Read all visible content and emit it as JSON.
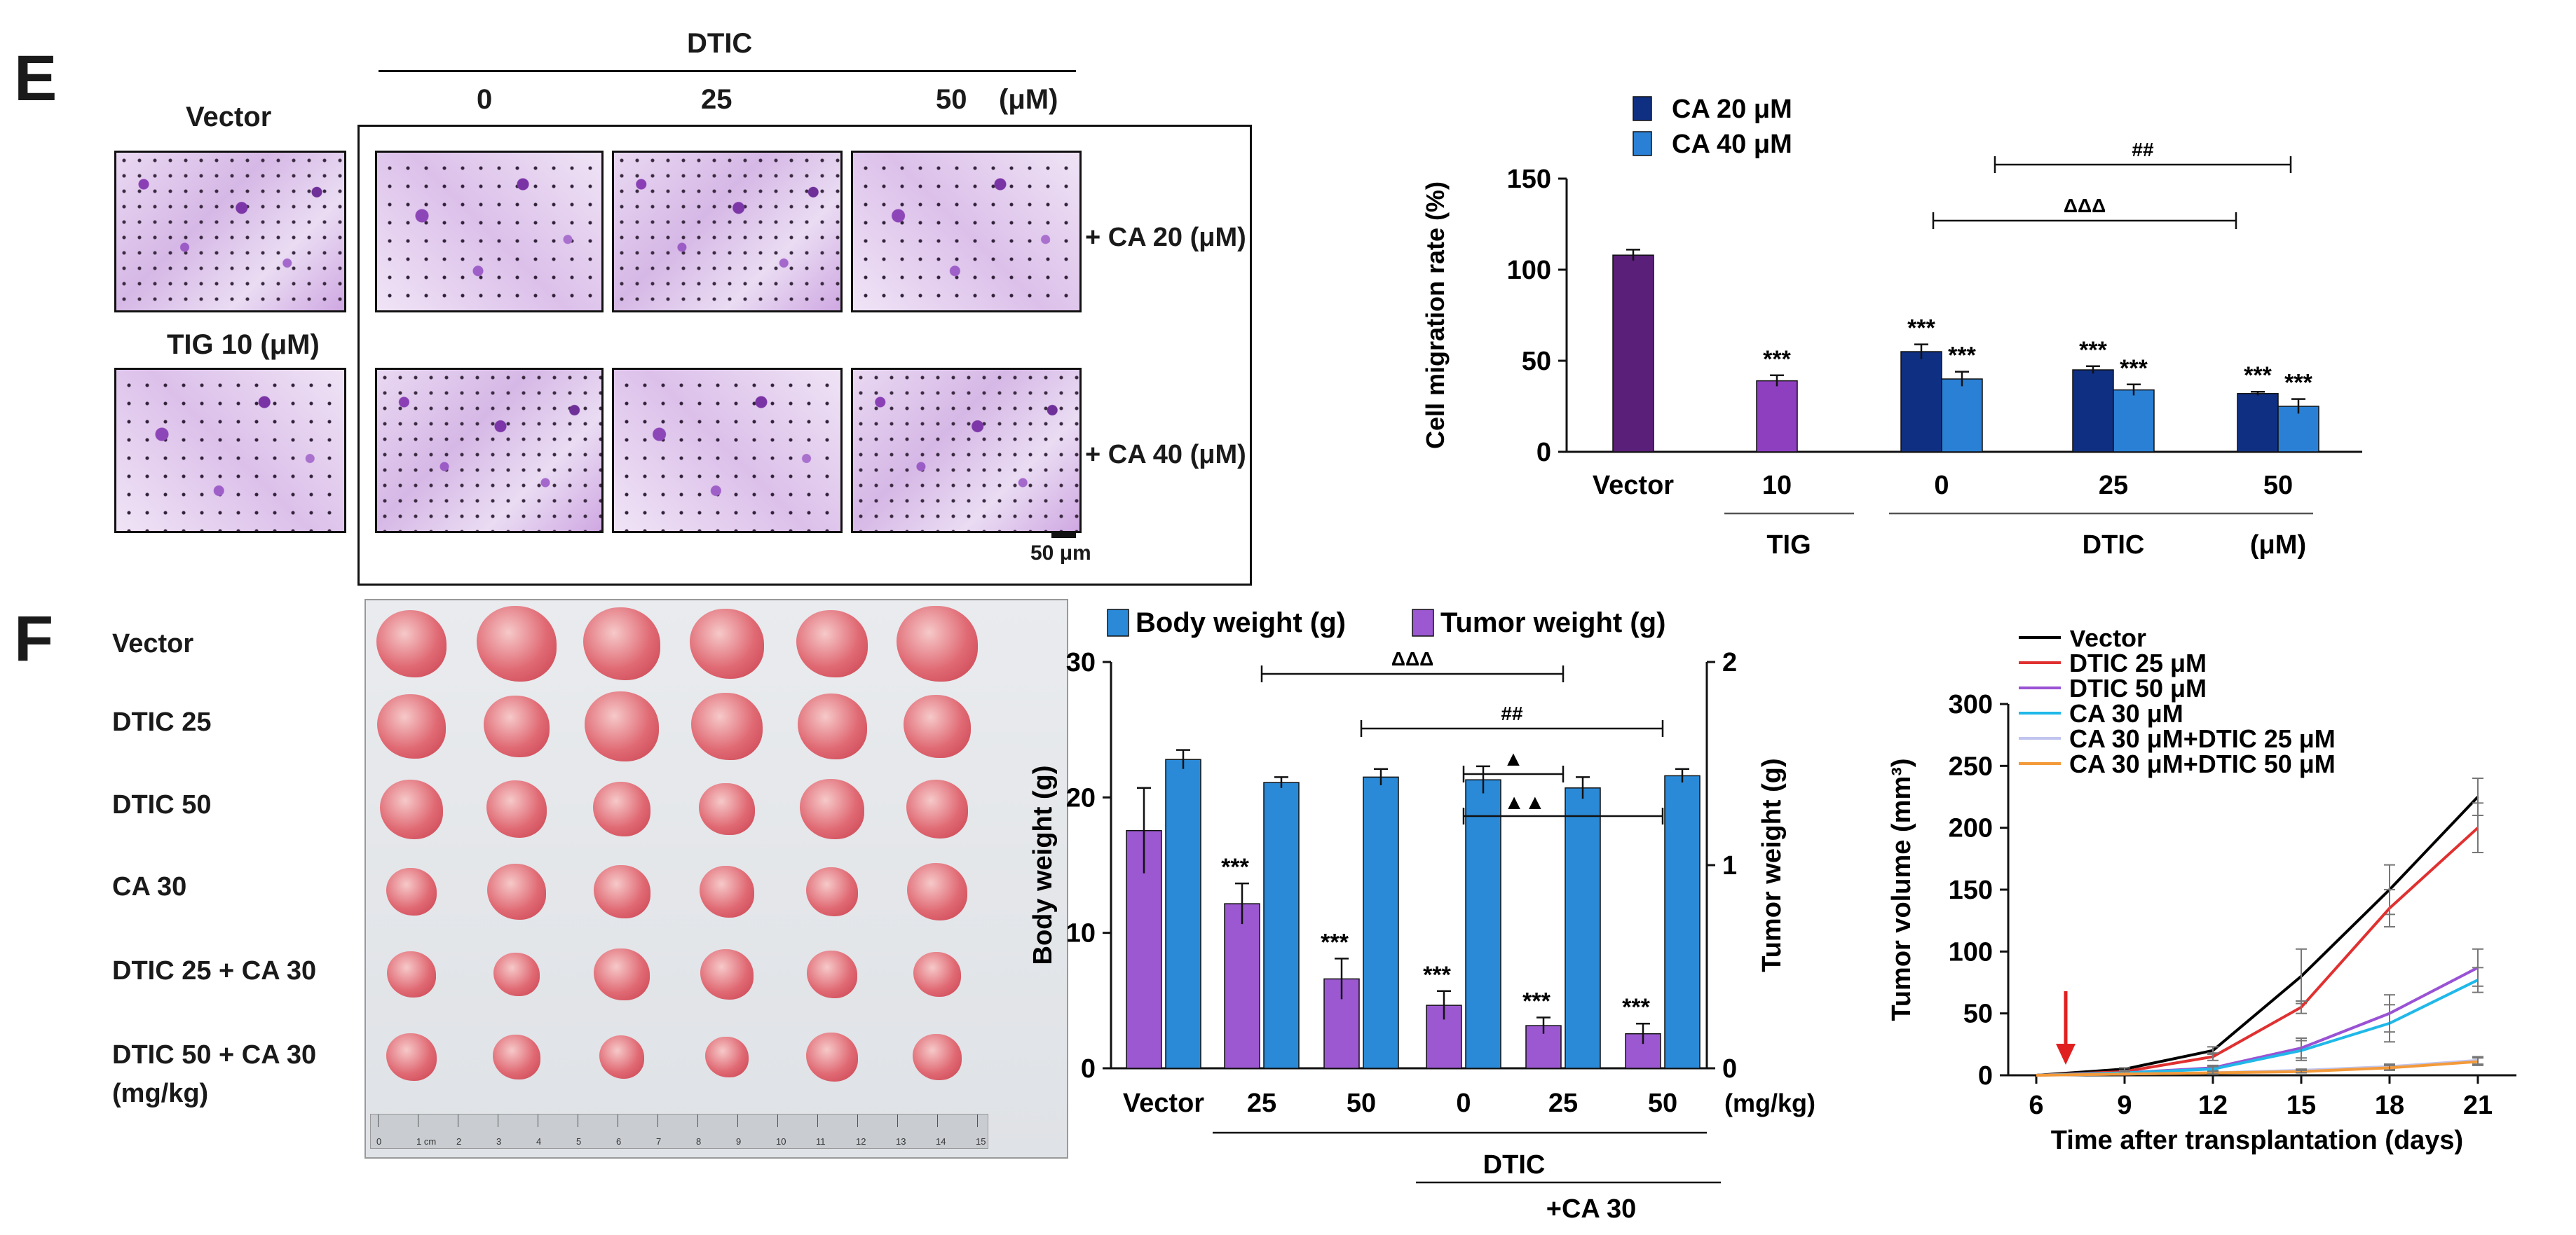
{
  "panel_e": {
    "letter": "E",
    "dtic_header": "DTIC",
    "dtic_doses": [
      "0",
      "25",
      "50"
    ],
    "unit": "(μM)",
    "vector_label": "Vector",
    "tig_label": "TIG 10 (μM)",
    "row_labels": [
      "+ CA 20 (μM)",
      "+ CA 40 (μM)"
    ],
    "scale_bar": "50 μm"
  },
  "panel_f": {
    "letter": "F",
    "row_labels": [
      "Vector",
      "DTIC 25",
      "DTIC 50",
      "CA 30",
      "DTIC 25 + CA 30",
      "DTIC 50 + CA 30"
    ],
    "units_label": "(mg/kg)",
    "ruler_ticks": [
      "0",
      "1 cm",
      "2",
      "3",
      "4",
      "5",
      "6",
      "7",
      "8",
      "9",
      "10",
      "11",
      "12",
      "13",
      "14",
      "15"
    ]
  },
  "colors": {
    "vector_purple": "#5a1f78",
    "tig_purple": "#8e3fc0",
    "ca20_navy": "#0f2f82",
    "ca40_blue": "#2a80d4",
    "body_blue": "#2a8ad8",
    "tumor_purple": "#9b58d0",
    "line_vector": "#000000",
    "line_dtic25": "#e03030",
    "line_dtic50": "#9a52d4",
    "line_ca30": "#20b8e8",
    "line_ca30_dtic25": "#c0c4ee",
    "line_ca30_dtic50": "#f39a3a",
    "arrow_red": "#e02020"
  },
  "chart_data": [
    {
      "type": "bar",
      "title": "",
      "ylabel": "Cell migration rate (%)",
      "ylim": [
        0,
        150
      ],
      "yticks": [
        "0",
        "50",
        "100",
        "150"
      ],
      "categories": [
        "Vector",
        "10",
        "0",
        "25",
        "50"
      ],
      "group_labels": [
        "TIG",
        "DTIC",
        "(μM)"
      ],
      "legend": [
        "CA 20 μM",
        "CA 40 μM"
      ],
      "bars": [
        {
          "category": "Vector",
          "series": "Vector",
          "value": 108,
          "error": 3
        },
        {
          "category": "10",
          "series": "TIG",
          "value": 39,
          "error": 3,
          "label": "***"
        },
        {
          "category": "0",
          "series": "CA 20 μM",
          "value": 55,
          "error": 4,
          "label": "***"
        },
        {
          "category": "0",
          "series": "CA 40 μM",
          "value": 40,
          "error": 4,
          "label": "***"
        },
        {
          "category": "25",
          "series": "CA 20 μM",
          "value": 45,
          "error": 2,
          "label": "***"
        },
        {
          "category": "25",
          "series": "CA 40 μM",
          "value": 34,
          "error": 3,
          "label": "***"
        },
        {
          "category": "50",
          "series": "CA 20 μM",
          "value": 32,
          "error": 1,
          "label": "***"
        },
        {
          "category": "50",
          "series": "CA 40 μM",
          "value": 25,
          "error": 4,
          "label": "***"
        }
      ],
      "brackets": [
        {
          "label": "##"
        },
        {
          "label": "ΔΔΔ"
        }
      ]
    },
    {
      "type": "bar",
      "title": "",
      "ylabel": "Body weight (g)",
      "y2label": "Tumor weight (g)",
      "ylim": [
        0,
        30
      ],
      "y2lim": [
        0,
        2
      ],
      "yticks": [
        "0",
        "10",
        "20",
        "30"
      ],
      "y2ticks": [
        "0",
        "1",
        "2"
      ],
      "categories": [
        "Vector",
        "25",
        "50",
        "0",
        "25",
        "50"
      ],
      "unit_label": "(mg/kg)",
      "group_labels": [
        "DTIC",
        "+CA 30"
      ],
      "legend": [
        "Body weight (g)",
        "Tumor weight (g)"
      ],
      "series": [
        {
          "name": "Tumor weight (g)",
          "values": [
            1.17,
            0.81,
            0.44,
            0.31,
            0.21,
            0.17
          ],
          "errors": [
            0.21,
            0.1,
            0.1,
            0.07,
            0.04,
            0.05
          ],
          "labels": [
            "",
            "***",
            "***",
            "***",
            "***",
            "***"
          ]
        },
        {
          "name": "Body weight (g)",
          "values": [
            22.8,
            21.1,
            21.5,
            21.3,
            20.7,
            21.6
          ],
          "errors": [
            0.7,
            0.4,
            0.6,
            1.0,
            0.8,
            0.5
          ]
        }
      ],
      "brackets": [
        {
          "label": "ΔΔΔ"
        },
        {
          "label": "##"
        },
        {
          "label": "▲"
        },
        {
          "label": "▲▲"
        }
      ]
    },
    {
      "type": "line",
      "title": "",
      "xlabel": "Time after transplantation  (days)",
      "ylabel": "Tumor volume (mm³)",
      "x": [
        6,
        9,
        12,
        15,
        18,
        21
      ],
      "xticks": [
        "6",
        "9",
        "12",
        "15",
        "18",
        "21"
      ],
      "ylim": [
        0,
        300
      ],
      "yticks": [
        "0",
        "50",
        "100",
        "150",
        "200",
        "250",
        "300"
      ],
      "series": [
        {
          "name": "Vector",
          "values": [
            0,
            5,
            20,
            80,
            150,
            225
          ],
          "errors": [
            0,
            1,
            3,
            22,
            20,
            15
          ]
        },
        {
          "name": "DTIC 25 μM",
          "values": [
            0,
            3,
            15,
            55,
            135,
            200
          ],
          "errors": [
            0,
            1,
            3,
            5,
            15,
            20
          ]
        },
        {
          "name": "DTIC 50 μM",
          "values": [
            0,
            2,
            6,
            22,
            50,
            87
          ],
          "errors": [
            0,
            1,
            2,
            8,
            15,
            15
          ]
        },
        {
          "name": "CA 30 μM",
          "values": [
            0,
            2,
            5,
            20,
            42,
            77
          ],
          "errors": [
            0,
            1,
            2,
            8,
            15,
            10
          ]
        },
        {
          "name": "CA 30 μM+DTIC 25 μM",
          "values": [
            0,
            1,
            2,
            4,
            7,
            12
          ],
          "errors": [
            0,
            0,
            1,
            1,
            2,
            3
          ]
        },
        {
          "name": "CA 30 μM+DTIC 50 μM",
          "values": [
            0,
            1,
            2,
            3,
            6,
            11
          ],
          "errors": [
            0,
            0,
            1,
            1,
            2,
            3
          ]
        }
      ],
      "arrow_day": 7
    }
  ]
}
